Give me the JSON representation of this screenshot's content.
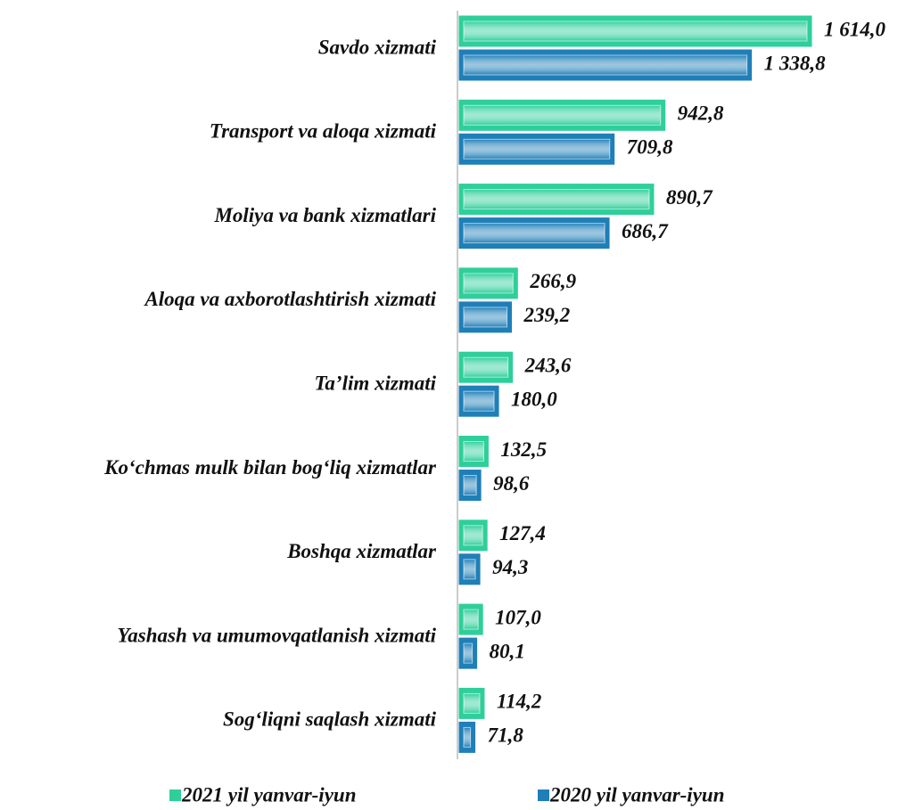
{
  "chart_data": {
    "type": "bar",
    "orientation": "horizontal",
    "categories": [
      "Savdo xizmati",
      "Transport va aloqa xizmati",
      "Moliya va bank xizmatlari",
      "Aloqa va axborotlashtirish xizmati",
      "Ta’lim xizmati",
      "Ko‘chmas mulk bilan bog‘liq xizmatlar",
      "Boshqa xizmatlar",
      "Yashash va umumovqatlanish xizmati",
      "Sog‘liqni saqlash xizmati"
    ],
    "series": [
      {
        "name": "2021 yil yanvar-iyun",
        "color": "#2ecf9a",
        "values": [
          1614.0,
          942.8,
          890.7,
          266.9,
          243.6,
          132.5,
          127.4,
          107.0,
          114.2
        ],
        "value_labels": [
          "1 614,0",
          "942,8",
          "890,7",
          "266,9",
          "243,6",
          "132,5",
          "127,4",
          "107,0",
          "114,2"
        ]
      },
      {
        "name": "2020 yil yanvar-iyun",
        "color": "#1f7fb8",
        "values": [
          1338.8,
          709.8,
          686.7,
          239.2,
          180.0,
          98.6,
          94.3,
          80.1,
          71.8
        ],
        "value_labels": [
          "1 338,8",
          "709,8",
          "686,7",
          "239,2",
          "180,0",
          "98,6",
          "94,3",
          "80,1",
          "71,8"
        ]
      }
    ],
    "legend": "bottom"
  }
}
